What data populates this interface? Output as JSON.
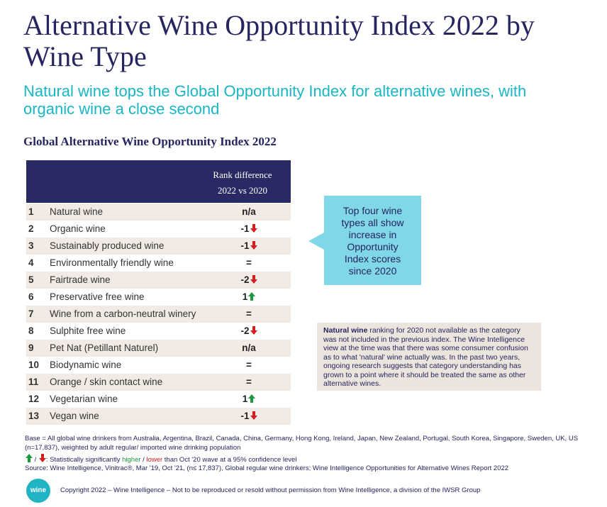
{
  "title": "Alternative Wine Opportunity Index 2022 by Wine Type",
  "subtitle": "Natural wine tops the Global Opportunity Index for alternative wines, with organic wine a close second",
  "section_title": "Global Alternative Wine Opportunity Index 2022",
  "table": {
    "header_line1": "Rank difference",
    "header_line2": "2022 vs 2020",
    "rows": [
      {
        "rank": "1",
        "name": "Natural wine",
        "diff": "n/a",
        "trend": "none"
      },
      {
        "rank": "2",
        "name": "Organic wine",
        "diff": "-1",
        "trend": "down"
      },
      {
        "rank": "3",
        "name": "Sustainably produced wine",
        "diff": "-1",
        "trend": "down"
      },
      {
        "rank": "4",
        "name": "Environmentally friendly wine",
        "diff": "=",
        "trend": "none"
      },
      {
        "rank": "5",
        "name": "Fairtrade wine",
        "diff": "-2",
        "trend": "down"
      },
      {
        "rank": "6",
        "name": "Preservative free wine",
        "diff": "1",
        "trend": "up"
      },
      {
        "rank": "7",
        "name": "Wine from a carbon-neutral winery",
        "diff": "=",
        "trend": "none"
      },
      {
        "rank": "8",
        "name": "Sulphite free wine",
        "diff": "-2",
        "trend": "down"
      },
      {
        "rank": "9",
        "name": "Pet Nat (Petillant Naturel)",
        "diff": "n/a",
        "trend": "none"
      },
      {
        "rank": "10",
        "name": "Biodynamic wine",
        "diff": "=",
        "trend": "none"
      },
      {
        "rank": "11",
        "name": "Orange / skin contact wine",
        "diff": "=",
        "trend": "none"
      },
      {
        "rank": "12",
        "name": "Vegetarian wine",
        "diff": "1",
        "trend": "up"
      },
      {
        "rank": "13",
        "name": "Vegan wine",
        "diff": "-1",
        "trend": "down"
      }
    ]
  },
  "callout": {
    "lines": [
      "Top four wine",
      "types all show",
      "increase in",
      "Opportunity",
      "Index scores",
      "since 2020"
    ]
  },
  "note": {
    "bold": "Natural wine",
    "text": " ranking for 2020 not available as the category was not included in the previous index. The Wine Intelligence view at the time was that there was some consumer confusion as to what 'natural' wine actually was. In the past two years, ongoing research suggests that category understanding has grown to a point where it should be treated the same as other alternative wines."
  },
  "footer": {
    "base": "Base = All global wine drinkers from Australia, Argentina, Brazil, Canada, China, Germany, Hong Kong, Ireland, Japan, New Zealand, Portugal, South Korea, Singapore, Sweden, UK, US (n=17,837), weighted by adult regular/ imported wine drinking population",
    "legend_prefix": ": Statistically significantly ",
    "legend_higher": "higher",
    "legend_sep": " / ",
    "legend_lower": "lower",
    "legend_suffix": " than Oct '20 wave at a 95% confidence level",
    "source": "Source: Wine Intelligence, Vinitrac®, Mar '19, Oct '21, (n≤ 17,837), Global regular wine drinkers; Wine Intelligence Opportunities for Alternative Wines Report 2022",
    "logo_text": "wine",
    "copyright": "Copyright 2022 – Wine Intelligence – Not to be reproduced or resold without permission from Wine Intelligence, a division of the IWSR Group"
  },
  "colors": {
    "navy": "#26255f",
    "teal": "#19b6c5",
    "callout": "#7fd7e8",
    "shade": "#f1ebe4",
    "up": "#1a9a3a",
    "down": "#d22020"
  },
  "icons": {
    "up": "green-up-arrow-icon",
    "down": "red-down-arrow-icon"
  }
}
